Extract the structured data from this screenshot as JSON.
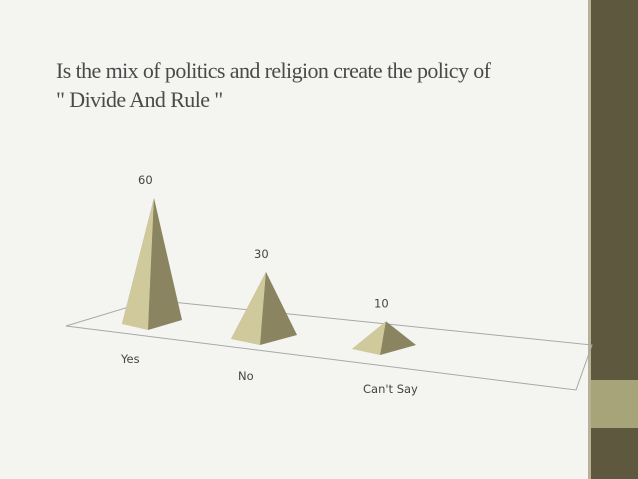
{
  "colors": {
    "background": "#f4f4f1",
    "sidebar": "#5e583f",
    "accent": "#a8a47a",
    "pyramid_light": "#cfc99c",
    "pyramid_dark": "#8a8460",
    "pyramid_side": "#a39d72"
  },
  "title_lines": [
    "Is the mix of politics and religion create the policy of",
    "\" Divide And Rule \""
  ],
  "chart_data": {
    "type": "bar",
    "style": "3d-pyramid",
    "categories": [
      "Yes",
      "No",
      "Can't Say"
    ],
    "values": [
      60,
      30,
      10
    ],
    "title": "Is the mix of politics and religion create the policy of \" Divide And Rule \"",
    "xlabel": "",
    "ylabel": "",
    "ylim": [
      0,
      60
    ],
    "grid": false,
    "legend": "none"
  }
}
